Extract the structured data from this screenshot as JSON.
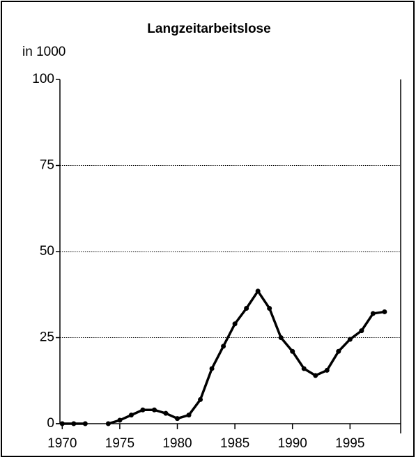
{
  "chart_data": {
    "type": "line",
    "title": "Langzeitarbeitslose",
    "ylabel": "in 1000",
    "x": [
      1970,
      1971,
      1972,
      1973,
      1974,
      1975,
      1976,
      1977,
      1978,
      1979,
      1980,
      1981,
      1982,
      1983,
      1984,
      1985,
      1986,
      1987,
      1988,
      1989,
      1990,
      1991,
      1992,
      1993,
      1994,
      1995,
      1996,
      1997,
      1998
    ],
    "series": [
      {
        "name": "Langzeitarbeitslose",
        "color": "#000000",
        "values": [
          0,
          0,
          0,
          null,
          0,
          1,
          2.5,
          4,
          4,
          3,
          1.5,
          2.5,
          7,
          16,
          22.5,
          29,
          33.5,
          38.5,
          33.5,
          25,
          21,
          16,
          14,
          15.5,
          21,
          24.5,
          27,
          32,
          32.5
        ]
      }
    ],
    "xlim": [
      1969.8,
      1999.4
    ],
    "xticks": [
      1970,
      1975,
      1980,
      1985,
      1990,
      1995
    ],
    "ylim": [
      0,
      100
    ],
    "yticks": [
      0,
      25,
      50,
      75,
      100
    ],
    "grid": true
  }
}
